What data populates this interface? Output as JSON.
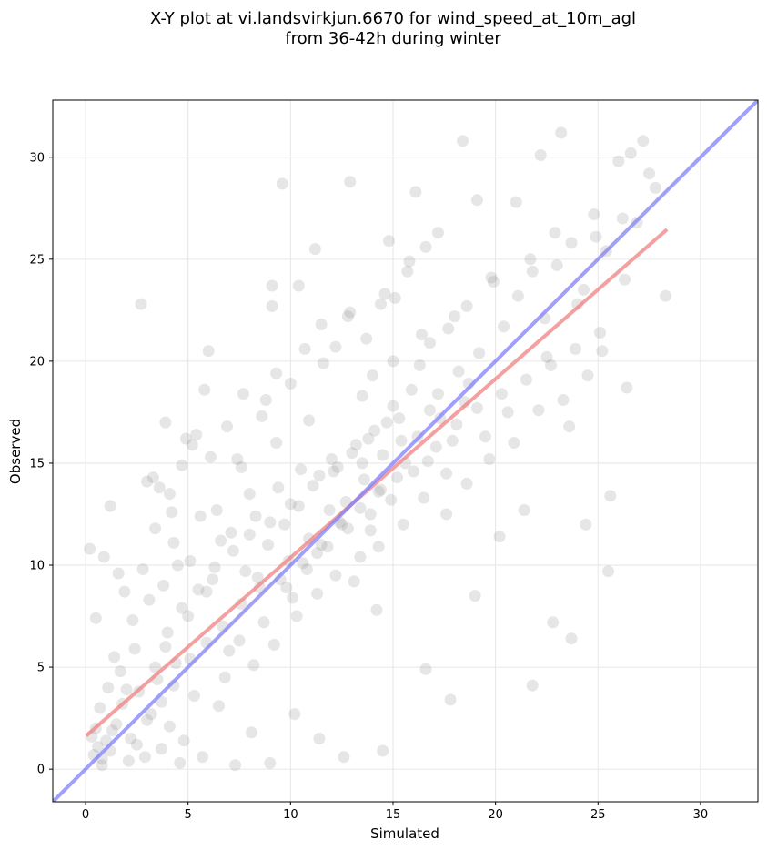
{
  "chart_data": {
    "type": "scatter",
    "title": "X-Y plot at vi.landsvirkjun.6670 for wind_speed_at_10m_agl",
    "subtitle": "from 36-42h during winter",
    "xlabel": "Simulated",
    "ylabel": "Observed",
    "xlim": [
      -1.6,
      32.8
    ],
    "ylim": [
      -1.6,
      32.8
    ],
    "xticks": [
      0,
      5,
      10,
      15,
      20,
      25,
      30
    ],
    "yticks": [
      0,
      5,
      10,
      15,
      20,
      25,
      30
    ],
    "grid": true,
    "point_color": "#808080",
    "point_alpha": 0.2,
    "series": [
      {
        "type": "scatter",
        "points": [
          [
            0.4,
            0.7
          ],
          [
            0.6,
            1.1
          ],
          [
            0.8,
            0.5
          ],
          [
            1.0,
            1.4
          ],
          [
            0.5,
            2.0
          ],
          [
            1.2,
            0.9
          ],
          [
            0.7,
            3.0
          ],
          [
            1.5,
            2.2
          ],
          [
            0.3,
            1.6
          ],
          [
            1.1,
            4.0
          ],
          [
            0.2,
            10.8
          ],
          [
            0.5,
            7.4
          ],
          [
            0.9,
            10.4
          ],
          [
            1.2,
            12.9
          ],
          [
            1.6,
            9.6
          ],
          [
            1.9,
            8.7
          ],
          [
            2.3,
            7.3
          ],
          [
            2.7,
            22.8
          ],
          [
            1.4,
            5.5
          ],
          [
            2.0,
            3.9
          ],
          [
            2.5,
            1.2
          ],
          [
            2.9,
            0.6
          ],
          [
            3.2,
            2.7
          ],
          [
            3.5,
            4.4
          ],
          [
            3.9,
            6.0
          ],
          [
            4.1,
            2.1
          ],
          [
            4.4,
            5.2
          ],
          [
            4.8,
            1.4
          ],
          [
            5.0,
            7.5
          ],
          [
            5.3,
            3.6
          ],
          [
            3.0,
            14.1
          ],
          [
            3.3,
            14.3
          ],
          [
            3.6,
            13.8
          ],
          [
            3.9,
            17.0
          ],
          [
            4.2,
            12.6
          ],
          [
            4.5,
            10.0
          ],
          [
            4.9,
            16.2
          ],
          [
            5.2,
            15.9
          ],
          [
            5.6,
            12.4
          ],
          [
            6.0,
            20.5
          ],
          [
            5.8,
            18.6
          ],
          [
            6.2,
            9.3
          ],
          [
            6.6,
            11.2
          ],
          [
            7.0,
            5.8
          ],
          [
            7.4,
            15.2
          ],
          [
            7.7,
            18.4
          ],
          [
            8.0,
            13.5
          ],
          [
            8.4,
            9.4
          ],
          [
            8.8,
            18.1
          ],
          [
            9.1,
            22.7
          ],
          [
            9.1,
            23.7
          ],
          [
            9.6,
            28.7
          ],
          [
            10.4,
            23.7
          ],
          [
            11.2,
            25.5
          ],
          [
            9.3,
            16.0
          ],
          [
            9.7,
            12.0
          ],
          [
            10.1,
            8.4
          ],
          [
            10.5,
            14.7
          ],
          [
            10.9,
            17.1
          ],
          [
            11.3,
            10.6
          ],
          [
            11.6,
            19.9
          ],
          [
            12.0,
            15.2
          ],
          [
            12.4,
            12.1
          ],
          [
            12.8,
            22.2
          ],
          [
            13.1,
            9.2
          ],
          [
            13.5,
            18.3
          ],
          [
            13.9,
            11.7
          ],
          [
            14.2,
            7.8
          ],
          [
            14.6,
            23.3
          ],
          [
            15.0,
            20.0
          ],
          [
            12.9,
            28.8
          ],
          [
            13.5,
            15.0
          ],
          [
            14.0,
            19.3
          ],
          [
            14.4,
            13.7
          ],
          [
            14.8,
            25.9
          ],
          [
            15.3,
            17.2
          ],
          [
            15.7,
            24.4
          ],
          [
            16.1,
            28.3
          ],
          [
            16.4,
            21.3
          ],
          [
            16.8,
            17.6
          ],
          [
            17.2,
            26.3
          ],
          [
            17.6,
            14.5
          ],
          [
            18.0,
            22.2
          ],
          [
            18.4,
            30.8
          ],
          [
            18.7,
            18.9
          ],
          [
            19.1,
            27.9
          ],
          [
            19.5,
            16.3
          ],
          [
            19.9,
            23.9
          ],
          [
            20.2,
            11.4
          ],
          [
            20.6,
            17.5
          ],
          [
            21.0,
            27.8
          ],
          [
            21.4,
            12.7
          ],
          [
            21.8,
            24.4
          ],
          [
            22.2,
            30.1
          ],
          [
            22.5,
            20.2
          ],
          [
            22.9,
            26.3
          ],
          [
            23.2,
            31.2
          ],
          [
            23.6,
            16.8
          ],
          [
            24.0,
            22.8
          ],
          [
            24.4,
            12.0
          ],
          [
            24.8,
            27.2
          ],
          [
            25.2,
            20.5
          ],
          [
            25.6,
            13.4
          ],
          [
            26.0,
            29.8
          ],
          [
            26.3,
            24.0
          ],
          [
            26.6,
            30.2
          ],
          [
            26.9,
            26.8
          ],
          [
            27.2,
            30.8
          ],
          [
            27.5,
            29.2
          ],
          [
            27.8,
            28.5
          ],
          [
            28.3,
            23.2
          ],
          [
            25.5,
            9.7
          ],
          [
            23.7,
            6.4
          ],
          [
            22.8,
            7.2
          ],
          [
            21.8,
            4.1
          ],
          [
            19.0,
            8.5
          ],
          [
            17.8,
            3.4
          ],
          [
            16.6,
            4.9
          ],
          [
            14.5,
            0.9
          ],
          [
            12.6,
            0.6
          ],
          [
            11.4,
            1.5
          ],
          [
            10.2,
            2.7
          ],
          [
            9.0,
            0.3
          ],
          [
            8.1,
            1.8
          ],
          [
            7.3,
            0.2
          ],
          [
            6.5,
            3.1
          ],
          [
            5.7,
            0.6
          ],
          [
            4.6,
            0.3
          ],
          [
            3.7,
            1.0
          ],
          [
            2.1,
            0.4
          ],
          [
            1.7,
            4.8
          ],
          [
            2.4,
            5.9
          ],
          [
            3.1,
            8.3
          ],
          [
            3.8,
            9.0
          ],
          [
            4.3,
            11.1
          ],
          [
            5.1,
            10.2
          ],
          [
            5.9,
            8.7
          ],
          [
            6.4,
            12.7
          ],
          [
            7.1,
            11.6
          ],
          [
            7.8,
            9.7
          ],
          [
            8.3,
            12.4
          ],
          [
            8.9,
            11.0
          ],
          [
            9.4,
            13.8
          ],
          [
            9.9,
            10.2
          ],
          [
            10.4,
            12.9
          ],
          [
            10.9,
            11.3
          ],
          [
            11.4,
            14.4
          ],
          [
            11.9,
            12.7
          ],
          [
            12.3,
            14.8
          ],
          [
            12.7,
            13.1
          ],
          [
            13.2,
            15.9
          ],
          [
            13.6,
            14.2
          ],
          [
            14.1,
            16.6
          ],
          [
            14.5,
            15.4
          ],
          [
            15.0,
            17.8
          ],
          [
            15.4,
            16.1
          ],
          [
            15.9,
            18.6
          ],
          [
            16.3,
            19.8
          ],
          [
            16.8,
            20.9
          ],
          [
            17.2,
            18.4
          ],
          [
            17.7,
            21.6
          ],
          [
            18.2,
            19.5
          ],
          [
            18.6,
            22.7
          ],
          [
            19.2,
            20.4
          ],
          [
            19.8,
            24.1
          ],
          [
            20.4,
            21.7
          ],
          [
            21.1,
            23.2
          ],
          [
            21.7,
            25.0
          ],
          [
            22.4,
            22.1
          ],
          [
            23.0,
            24.7
          ],
          [
            23.7,
            25.8
          ],
          [
            24.3,
            23.5
          ],
          [
            24.9,
            26.1
          ],
          [
            25.4,
            25.4
          ],
          [
            26.2,
            27.0
          ],
          [
            6.8,
            4.5
          ],
          [
            7.5,
            6.3
          ],
          [
            8.2,
            5.1
          ],
          [
            8.7,
            7.2
          ],
          [
            9.2,
            6.1
          ],
          [
            9.8,
            8.9
          ],
          [
            10.3,
            7.5
          ],
          [
            10.8,
            9.8
          ],
          [
            11.3,
            8.6
          ],
          [
            11.8,
            10.9
          ],
          [
            12.2,
            9.5
          ],
          [
            12.8,
            11.8
          ],
          [
            13.4,
            10.4
          ],
          [
            13.9,
            12.5
          ],
          [
            14.3,
            10.9
          ],
          [
            14.9,
            13.2
          ],
          [
            15.5,
            12.0
          ],
          [
            16.0,
            14.6
          ],
          [
            16.5,
            13.3
          ],
          [
            17.1,
            15.8
          ],
          [
            17.6,
            12.5
          ],
          [
            18.1,
            16.9
          ],
          [
            18.6,
            14.0
          ],
          [
            19.1,
            17.7
          ],
          [
            19.7,
            15.2
          ],
          [
            20.3,
            18.4
          ],
          [
            20.9,
            16.0
          ],
          [
            21.5,
            19.1
          ],
          [
            22.1,
            17.6
          ],
          [
            22.7,
            19.8
          ],
          [
            23.3,
            18.1
          ],
          [
            23.9,
            20.6
          ],
          [
            24.5,
            19.3
          ],
          [
            25.1,
            21.4
          ],
          [
            26.4,
            18.7
          ],
          [
            0.8,
            0.2
          ],
          [
            1.3,
            1.9
          ],
          [
            1.8,
            3.2
          ],
          [
            2.2,
            1.5
          ],
          [
            2.6,
            3.8
          ],
          [
            3.0,
            2.4
          ],
          [
            3.4,
            5.0
          ],
          [
            3.7,
            3.3
          ],
          [
            4.0,
            6.7
          ],
          [
            4.3,
            4.1
          ],
          [
            4.7,
            7.9
          ],
          [
            5.1,
            5.4
          ],
          [
            5.5,
            8.8
          ],
          [
            5.9,
            6.2
          ],
          [
            6.3,
            9.9
          ],
          [
            6.7,
            7.0
          ],
          [
            7.2,
            10.7
          ],
          [
            7.6,
            8.1
          ],
          [
            8.0,
            11.5
          ],
          [
            8.5,
            8.9
          ],
          [
            9.0,
            12.1
          ],
          [
            9.5,
            9.3
          ],
          [
            10.0,
            13.0
          ],
          [
            10.6,
            10.1
          ],
          [
            11.1,
            13.9
          ],
          [
            11.5,
            11.0
          ],
          [
            12.1,
            14.6
          ],
          [
            12.5,
            12.0
          ],
          [
            13.0,
            15.5
          ],
          [
            13.4,
            12.8
          ],
          [
            13.8,
            16.2
          ],
          [
            14.3,
            13.6
          ],
          [
            14.7,
            17.0
          ],
          [
            15.2,
            14.3
          ],
          [
            15.6,
            15.0
          ],
          [
            16.2,
            16.3
          ],
          [
            16.7,
            15.1
          ],
          [
            17.3,
            17.2
          ],
          [
            17.9,
            16.1
          ],
          [
            18.5,
            18.0
          ],
          [
            2.8,
            9.8
          ],
          [
            3.4,
            11.8
          ],
          [
            4.1,
            13.5
          ],
          [
            4.7,
            14.9
          ],
          [
            5.4,
            16.4
          ],
          [
            6.1,
            15.3
          ],
          [
            6.9,
            16.8
          ],
          [
            7.6,
            14.8
          ],
          [
            8.6,
            17.3
          ],
          [
            9.3,
            19.4
          ],
          [
            10.0,
            18.9
          ],
          [
            10.7,
            20.6
          ],
          [
            11.5,
            21.8
          ],
          [
            12.2,
            20.7
          ],
          [
            12.9,
            22.4
          ],
          [
            13.7,
            21.1
          ],
          [
            14.4,
            22.8
          ],
          [
            15.1,
            23.1
          ],
          [
            15.8,
            24.9
          ],
          [
            16.6,
            25.6
          ]
        ]
      },
      {
        "type": "line",
        "name": "",
        "color": "#f08080",
        "points": [
          [
            0.1,
            1.7
          ],
          [
            28.3,
            26.4
          ]
        ]
      },
      {
        "type": "line",
        "name": "",
        "color": "#8080f8",
        "points": [
          [
            -1.6,
            -1.6
          ],
          [
            32.8,
            32.8
          ]
        ]
      }
    ]
  }
}
